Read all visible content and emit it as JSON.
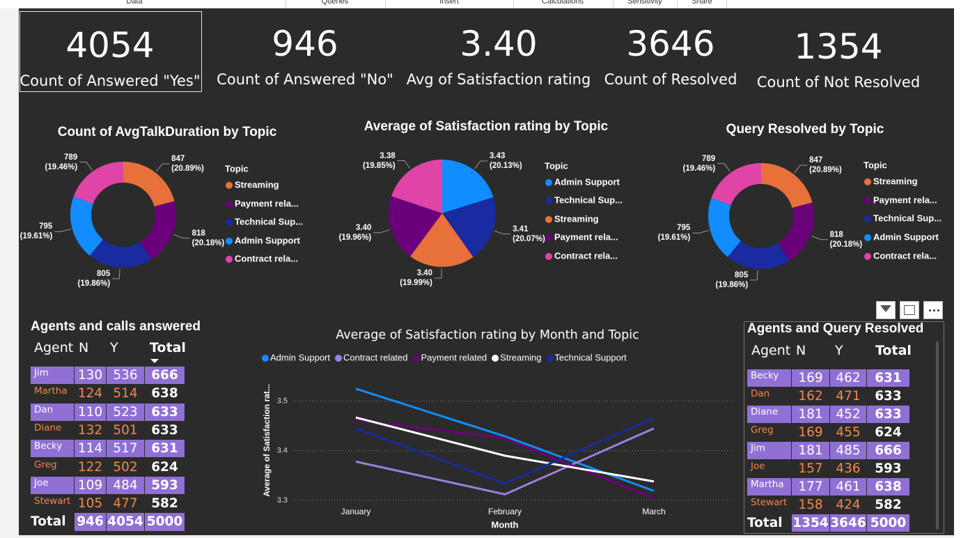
{
  "ribbon": {
    "tabs": [
      "Data",
      "Queries",
      "Insert",
      "Calculations",
      "Sensitivity",
      "Share"
    ]
  },
  "kpis": [
    {
      "value": "4054",
      "label": "Count of Answered \"Yes\""
    },
    {
      "value": "946",
      "label": "Count of Answered \"No\""
    },
    {
      "value": "3.40",
      "label": "Avg of Satisfaction rating"
    },
    {
      "value": "3646",
      "label": "Count of Resolved"
    },
    {
      "value": "1354",
      "label": "Count of Not Resolved"
    }
  ],
  "chart_data": [
    {
      "type": "donut",
      "title": "Count of AvgTalkDuration by Topic",
      "legend_title": "Topic",
      "legend": [
        "Streaming",
        "Payment rela...",
        "Technical Sup...",
        "Admin Support",
        "Contract rela..."
      ],
      "colors": [
        "#e8703a",
        "#6b007b",
        "#1a2aa0",
        "#118dff",
        "#e044a7"
      ],
      "values": [
        847,
        818,
        805,
        795,
        789
      ],
      "value_labels": [
        "847 (20.89%)",
        "818 (20.18%)",
        "805 (19.86%)",
        "795 (19.61%)",
        "789 (19.46%)"
      ]
    },
    {
      "type": "pie",
      "title": "Average of Satisfaction rating by Topic",
      "legend_title": "Topic",
      "legend": [
        "Admin Support",
        "Technical Sup...",
        "Streaming",
        "Payment rela...",
        "Contract rela..."
      ],
      "colors": [
        "#118dff",
        "#1a2aa0",
        "#e8703a",
        "#6b007b",
        "#e044a7"
      ],
      "values": [
        3.43,
        3.41,
        3.4,
        3.4,
        3.38
      ],
      "value_labels": [
        "3.43 (20.13%)",
        "3.41 (20.07%)",
        "3.40 (19.99%)",
        "3.40 (19.96%)",
        "3.38 (19.85%)"
      ]
    },
    {
      "type": "donut",
      "title": "Query Resolved by Topic",
      "legend_title": "Topic",
      "legend": [
        "Streaming",
        "Payment rela...",
        "Technical Sup...",
        "Admin Support",
        "Contract rela..."
      ],
      "colors": [
        "#e8703a",
        "#6b007b",
        "#1a2aa0",
        "#118dff",
        "#e044a7"
      ],
      "values": [
        847,
        818,
        805,
        795,
        789
      ],
      "value_labels": [
        "847 (20.89%)",
        "818 (20.18%)",
        "805 (19.86%)",
        "795 (19.61%)",
        "789 (19.46%)"
      ]
    },
    {
      "type": "line",
      "title": "Average of Satisfaction rating by Month and Topic",
      "x_title": "Month",
      "y_title": "Average of Satisfaction rat...",
      "categories": [
        "January",
        "February",
        "March"
      ],
      "ylim": [
        3.29,
        3.55
      ],
      "yticks": [
        3.3,
        3.4,
        3.5
      ],
      "grid": true,
      "series": [
        {
          "name": "Admin Support",
          "color": "#118dff",
          "values": [
            3.525,
            3.429,
            3.319
          ]
        },
        {
          "name": "Contract related",
          "color": "#9b7fe0",
          "values": [
            3.378,
            3.312,
            3.445
          ]
        },
        {
          "name": "Payment related",
          "color": "#6b007b",
          "values": [
            3.462,
            3.425,
            3.304
          ]
        },
        {
          "name": "Streaming",
          "color": "#ffffff",
          "values": [
            3.467,
            3.39,
            3.338
          ]
        },
        {
          "name": "Technical Support",
          "color": "#1a2aa0",
          "values": [
            3.445,
            3.334,
            3.466
          ]
        }
      ]
    }
  ],
  "tables": [
    {
      "title": "Agents and calls answered",
      "columns": [
        "Agent",
        "N",
        "Y",
        "Total"
      ],
      "rows": [
        [
          "Jim",
          130,
          536,
          666
        ],
        [
          "Martha",
          124,
          514,
          638
        ],
        [
          "Dan",
          110,
          523,
          633
        ],
        [
          "Diane",
          132,
          501,
          633
        ],
        [
          "Becky",
          114,
          517,
          631
        ],
        [
          "Greg",
          122,
          502,
          624
        ],
        [
          "Joe",
          109,
          484,
          593
        ],
        [
          "Stewart",
          105,
          477,
          582
        ]
      ],
      "total": [
        "Total",
        946,
        4054,
        5000
      ]
    },
    {
      "title": "Agents and Query Resolved",
      "columns": [
        "Agent",
        "N",
        "Y",
        "Total"
      ],
      "rows": [
        [
          "Becky",
          169,
          462,
          631
        ],
        [
          "Dan",
          162,
          471,
          633
        ],
        [
          "Diane",
          181,
          452,
          633
        ],
        [
          "Greg",
          169,
          455,
          624
        ],
        [
          "Jim",
          181,
          485,
          666
        ],
        [
          "Joe",
          157,
          436,
          593
        ],
        [
          "Martha",
          177,
          461,
          638
        ],
        [
          "Stewart",
          158,
          424,
          582
        ]
      ],
      "total": [
        "Total",
        1354,
        3646,
        5000
      ]
    }
  ]
}
